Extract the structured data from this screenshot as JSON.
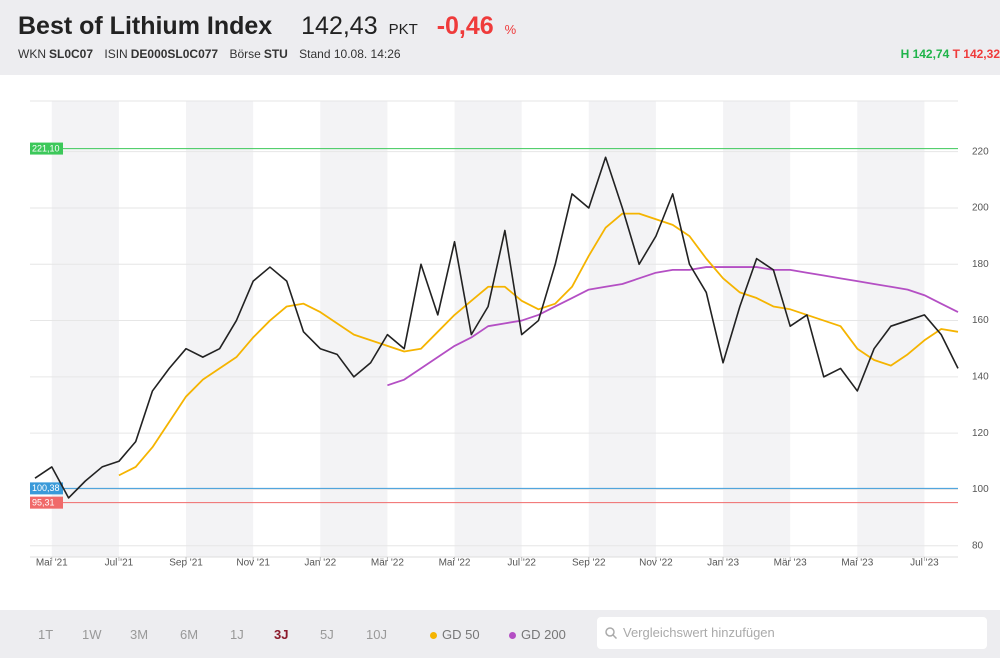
{
  "header": {
    "title": "Best of Lithium Index",
    "price": "142,43",
    "unit": "PKT",
    "change": "-0,46",
    "change_unit": "%",
    "wkn_label": "WKN",
    "wkn": "SL0C07",
    "isin_label": "ISIN",
    "isin": "DE000SL0C077",
    "exchange_label": "Börse",
    "exchange": "STU",
    "timestamp": "Stand 10.08. 14:26",
    "high": "H 142,74",
    "low": "T 142,32"
  },
  "controls": {
    "periods": [
      "1T",
      "1W",
      "3M",
      "6M",
      "1J",
      "3J",
      "5J",
      "10J"
    ],
    "active_period": "3J",
    "search_placeholder": "Vergleichswert hinzufügen"
  },
  "chart_data": {
    "type": "line",
    "categories": [
      null,
      "Mai '21",
      null,
      null,
      null,
      "Jul '21",
      null,
      null,
      null,
      "Sep '21",
      null,
      null,
      null,
      "Nov '21",
      null,
      null,
      null,
      "Jan '22",
      null,
      null,
      null,
      "Mär '22",
      null,
      null,
      null,
      "Mai '22",
      null,
      null,
      null,
      "Jul '22",
      null,
      null,
      null,
      "Sep '22",
      null,
      null,
      null,
      "Nov '22",
      null,
      null,
      null,
      "Jan '23",
      null,
      null,
      null,
      "Mär '23",
      null,
      null,
      null,
      "Mai '23",
      null,
      null,
      null,
      "Jul '23",
      null,
      null
    ],
    "series": [
      {
        "color": "#222222",
        "values": [
          104,
          108,
          97,
          103,
          108,
          110,
          117,
          135,
          143,
          150,
          147,
          150,
          160,
          174,
          179,
          174,
          156,
          150,
          148,
          140,
          145,
          155,
          150,
          180,
          162,
          188,
          155,
          165,
          192,
          155,
          160,
          180,
          205,
          200,
          218,
          200,
          180,
          190,
          205,
          180,
          170,
          145,
          165,
          182,
          178,
          158,
          162,
          140,
          143,
          135,
          150,
          158,
          160,
          162,
          155,
          143
        ]
      },
      {
        "name": "GD 50",
        "color": "#f5b400",
        "values": [
          null,
          null,
          null,
          null,
          null,
          105,
          108,
          115,
          124,
          133,
          139,
          143,
          147,
          154,
          160,
          165,
          166,
          163,
          159,
          155,
          153,
          151,
          149,
          150,
          156,
          162,
          167,
          172,
          172,
          167,
          164,
          166,
          172,
          183,
          193,
          198,
          198,
          196,
          194,
          190,
          182,
          175,
          170,
          168,
          165,
          164,
          162,
          160,
          158,
          150,
          146,
          144,
          148,
          153,
          157,
          156
        ]
      },
      {
        "name": "GD 200",
        "color": "#b44fc4",
        "values": [
          null,
          null,
          null,
          null,
          null,
          null,
          null,
          null,
          null,
          null,
          null,
          null,
          null,
          null,
          null,
          null,
          null,
          null,
          null,
          null,
          null,
          137,
          139,
          143,
          147,
          151,
          154,
          158,
          159,
          160,
          162,
          165,
          168,
          171,
          172,
          173,
          175,
          177,
          178,
          178,
          179,
          179,
          179,
          179,
          178,
          178,
          177,
          176,
          175,
          174,
          173,
          172,
          171,
          169,
          166,
          163
        ]
      }
    ],
    "reference_lines": [
      {
        "value": 221.1,
        "label": "221,10",
        "color": "#3cc85a"
      },
      {
        "value": 100.38,
        "label": "100,38",
        "color": "#3a9ad9"
      },
      {
        "value": 95.31,
        "label": "95,31",
        "color": "#f06a6a"
      }
    ],
    "ylim": [
      76,
      238
    ],
    "yticks": [
      80,
      100,
      120,
      140,
      160,
      180,
      200,
      220
    ],
    "grid": true
  }
}
